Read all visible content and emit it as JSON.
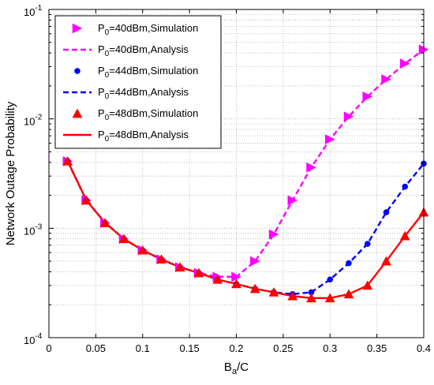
{
  "chart_data": {
    "type": "line",
    "x": [
      0.02,
      0.04,
      0.06,
      0.08,
      0.1,
      0.12,
      0.14,
      0.16,
      0.18,
      0.2,
      0.22,
      0.24,
      0.26,
      0.28,
      0.3,
      0.32,
      0.34,
      0.36,
      0.38,
      0.4
    ],
    "xlim": [
      0,
      0.4
    ],
    "ylim": [
      0.0001,
      0.1
    ],
    "yscale": "log",
    "grid": true,
    "legend_position": "top-left",
    "xticks": [
      "0",
      "0.05",
      "0.1",
      "0.15",
      "0.2",
      "0.25",
      "0.3",
      "0.35",
      "0.4"
    ],
    "xtick_values": [
      0,
      0.05,
      0.1,
      0.15,
      0.2,
      0.25,
      0.3,
      0.35,
      0.4
    ],
    "yticks": [
      {
        "base": "10",
        "exp": "-4",
        "value": 0.0001
      },
      {
        "base": "10",
        "exp": "-3",
        "value": 0.001
      },
      {
        "base": "10",
        "exp": "-2",
        "value": 0.01
      },
      {
        "base": "10",
        "exp": "-1",
        "value": 0.1
      }
    ],
    "xlabel": {
      "main": "B",
      "sub": "a",
      "rest": "/C"
    },
    "ylabel": "Network Outage Probability",
    "series": [
      {
        "name": {
          "pre": "P",
          "sub": "0",
          "post": "=40dBm,Simulation"
        },
        "style": "marker",
        "marker": "triangle-right",
        "color": "#ff00ff",
        "values": [
          0.0041,
          0.0018,
          0.00112,
          0.0008,
          0.00063,
          0.00052,
          0.00044,
          0.00039,
          0.00036,
          0.00036,
          0.0005,
          0.00088,
          0.0018,
          0.0036,
          0.0065,
          0.0105,
          0.016,
          0.023,
          0.032,
          0.043
        ]
      },
      {
        "name": {
          "pre": "P",
          "sub": "0",
          "post": "=40dBm,Analysis"
        },
        "style": "dashed",
        "color": "#ff00ff",
        "values": [
          0.0041,
          0.0018,
          0.00112,
          0.0008,
          0.00063,
          0.00052,
          0.00044,
          0.00039,
          0.00036,
          0.00036,
          0.0005,
          0.00088,
          0.0018,
          0.0036,
          0.0065,
          0.0105,
          0.016,
          0.023,
          0.032,
          0.043
        ]
      },
      {
        "name": {
          "pre": "P",
          "sub": "0",
          "post": "=44dBm,Simulation"
        },
        "style": "marker",
        "marker": "circle",
        "color": "#0000ff",
        "values": [
          0.0041,
          0.0018,
          0.00112,
          0.0008,
          0.00063,
          0.00052,
          0.00044,
          0.00039,
          0.00034,
          0.00031,
          0.00028,
          0.00026,
          0.00025,
          0.00026,
          0.00034,
          0.00048,
          0.00072,
          0.0014,
          0.0024,
          0.0039
        ]
      },
      {
        "name": {
          "pre": "P",
          "sub": "0",
          "post": "=44dBm,Analysis"
        },
        "style": "dashed",
        "color": "#0000ff",
        "values": [
          0.0041,
          0.0018,
          0.00112,
          0.0008,
          0.00063,
          0.00052,
          0.00044,
          0.00039,
          0.00034,
          0.00031,
          0.00028,
          0.00026,
          0.00025,
          0.00026,
          0.00034,
          0.00048,
          0.00072,
          0.0014,
          0.0024,
          0.0039
        ]
      },
      {
        "name": {
          "pre": "P",
          "sub": "0",
          "post": "=48dBm,Simulation"
        },
        "style": "marker",
        "marker": "triangle-up",
        "color": "#ff0000",
        "values": [
          0.0041,
          0.0018,
          0.00112,
          0.0008,
          0.00063,
          0.00052,
          0.00044,
          0.00039,
          0.00034,
          0.00031,
          0.00028,
          0.00026,
          0.00024,
          0.00023,
          0.00023,
          0.00025,
          0.0003,
          0.0005,
          0.00085,
          0.0014
        ]
      },
      {
        "name": {
          "pre": "P",
          "sub": "0",
          "post": "=48dBm,Analysis"
        },
        "style": "solid",
        "color": "#ff0000",
        "values": [
          0.0041,
          0.0018,
          0.00112,
          0.0008,
          0.00063,
          0.00052,
          0.00044,
          0.00039,
          0.00034,
          0.00031,
          0.00028,
          0.00026,
          0.00024,
          0.00023,
          0.00023,
          0.00025,
          0.0003,
          0.0005,
          0.00085,
          0.0014
        ]
      }
    ]
  }
}
